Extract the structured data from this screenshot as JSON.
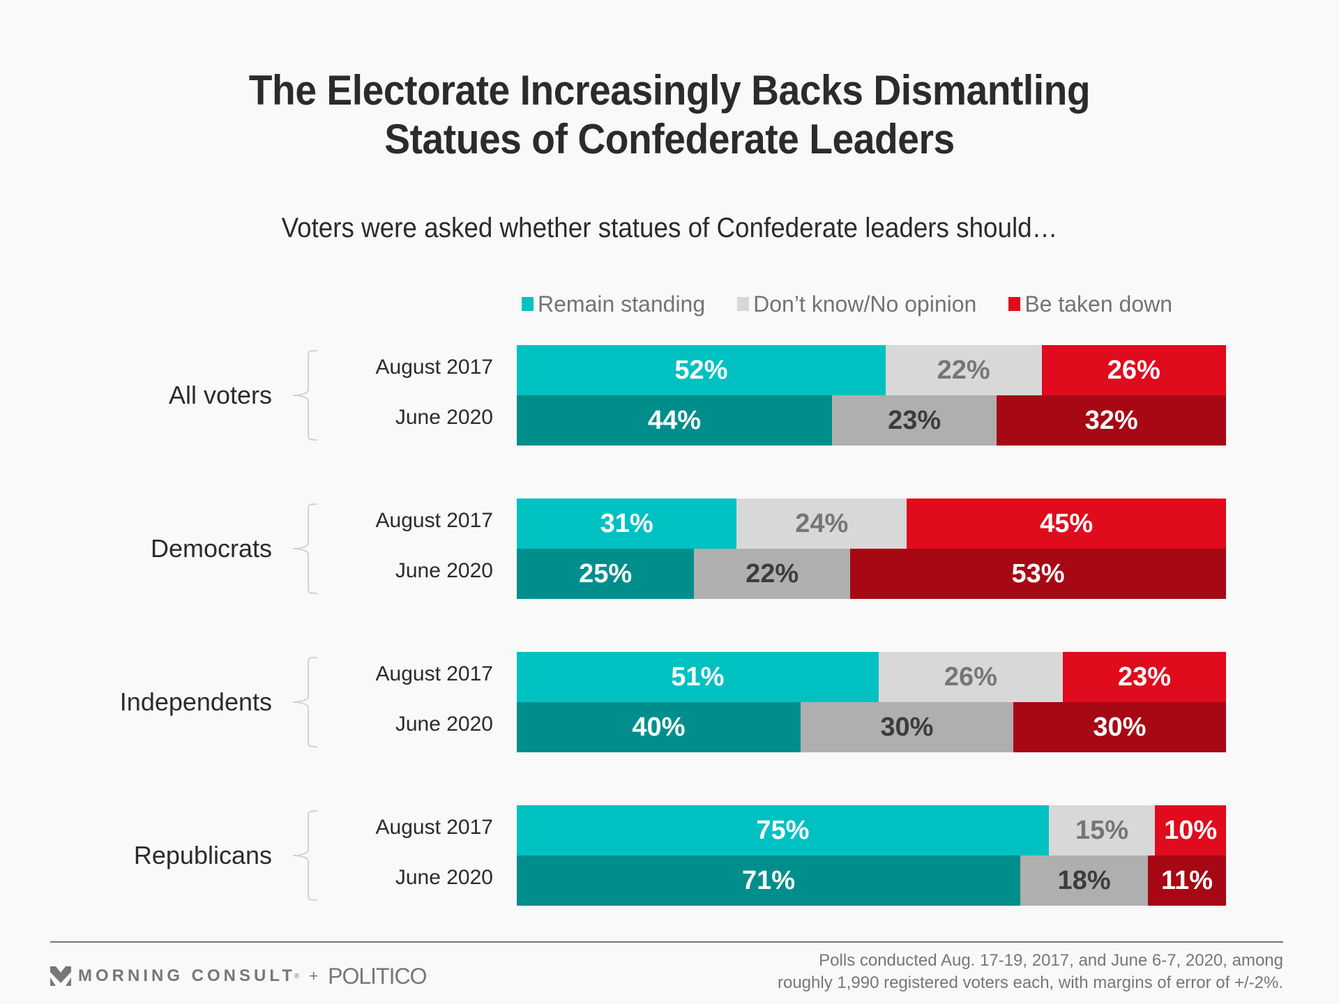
{
  "title_lines": [
    "The Electorate Increasingly Backs Dismantling",
    "Statues of Confederate Leaders"
  ],
  "subtitle": "Voters were asked whether statues of Confederate leaders should…",
  "legend": [
    {
      "label": "Remain standing",
      "color": "#00c1c2"
    },
    {
      "label": "Don’t know/No opinion",
      "color": "#d8d8d8"
    },
    {
      "label": "Be taken down",
      "color": "#e00b1c"
    }
  ],
  "chart_data": {
    "type": "bar",
    "orientation": "horizontal",
    "stacked": true,
    "title": "The Electorate Increasingly Backs Dismantling Statues of Confederate Leaders",
    "subtitle": "Voters were asked whether statues of Confederate leaders should…",
    "xlabel": "",
    "ylabel": "",
    "xlim": [
      0,
      100
    ],
    "unit": "%",
    "legend_position": "top",
    "series_names": [
      "Remain standing",
      "Don’t know/No opinion",
      "Be taken down"
    ],
    "groups": [
      {
        "name": "All voters",
        "rows": [
          {
            "label": "August 2017",
            "values": [
              52,
              22,
              26
            ]
          },
          {
            "label": "June 2020",
            "values": [
              44,
              23,
              32
            ]
          }
        ]
      },
      {
        "name": "Democrats",
        "rows": [
          {
            "label": "August 2017",
            "values": [
              31,
              24,
              45
            ]
          },
          {
            "label": "June 2020",
            "values": [
              25,
              22,
              53
            ]
          }
        ]
      },
      {
        "name": "Independents",
        "rows": [
          {
            "label": "August 2017",
            "values": [
              51,
              26,
              23
            ]
          },
          {
            "label": "June 2020",
            "values": [
              40,
              30,
              30
            ]
          }
        ]
      },
      {
        "name": "Republicans",
        "rows": [
          {
            "label": "August 2017",
            "values": [
              75,
              15,
              10
            ]
          },
          {
            "label": "June 2020",
            "values": [
              71,
              18,
              11
            ]
          }
        ]
      }
    ],
    "colors": {
      "2017": [
        "#00c1c2",
        "#d8d8d8",
        "#e00b1c"
      ],
      "2020": [
        "#008e8c",
        "#afafaf",
        "#a60814"
      ]
    },
    "label_colors": {
      "2017": [
        "#ffffff",
        "#767676",
        "#ffffff"
      ],
      "2020": [
        "#ffffff",
        "#3c3c3c",
        "#ffffff"
      ]
    }
  },
  "footer": {
    "brand": "MORNING CONSULT",
    "registered_mark": "®",
    "plus": "+",
    "partner": "POLITICO",
    "note_lines": [
      "Polls conducted Aug. 17-19, 2017, and June 6-7, 2020, among",
      "roughly 1,990 registered voters each, with margins of error of +/-2%."
    ]
  }
}
